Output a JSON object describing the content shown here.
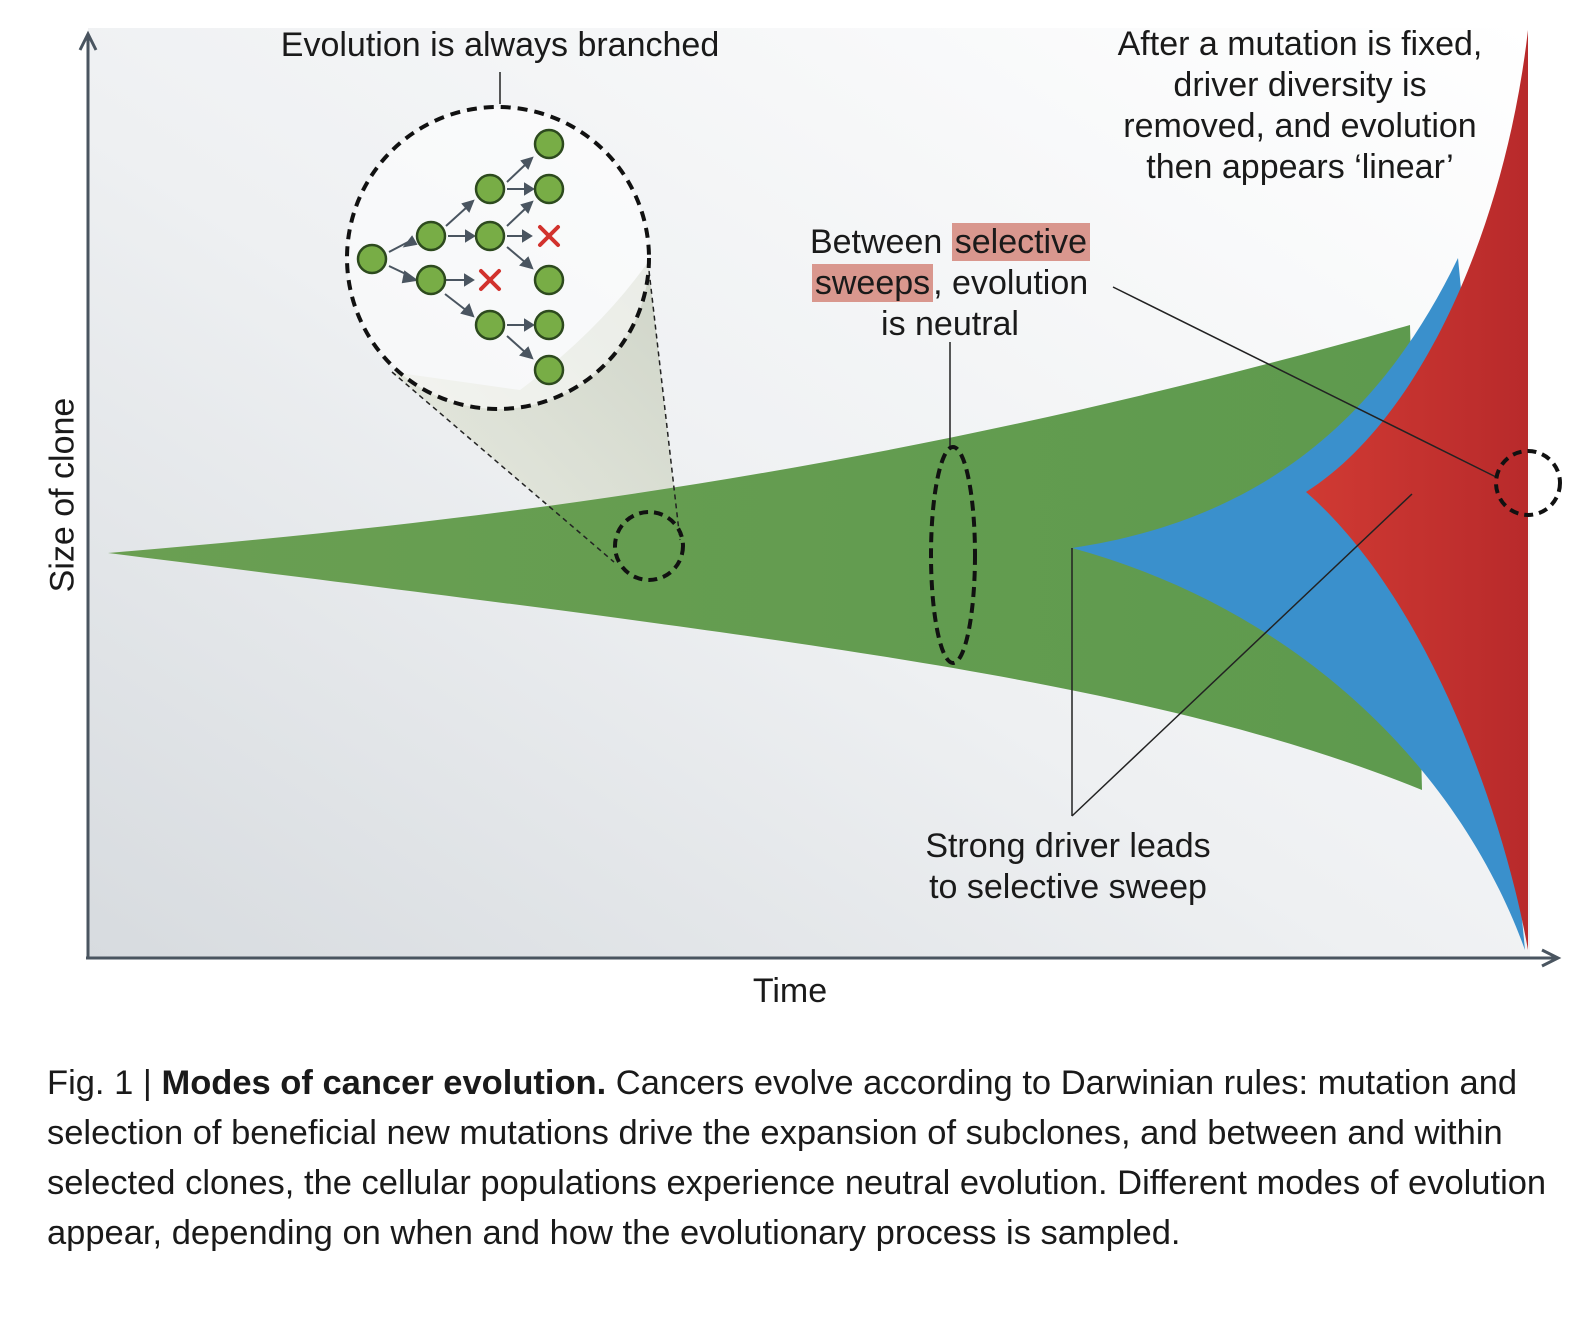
{
  "axes": {
    "y_label": "Size of clone",
    "x_label": "Time"
  },
  "annotations": {
    "branched": "Evolution is always branched",
    "fixed": [
      "After a mutation is fixed,",
      "driver diversity is",
      "removed, and evolution",
      "then appears ‘linear’"
    ],
    "neutral": {
      "line1_pre": "Between ",
      "line1_highlight": "selective",
      "line2_highlight": "sweeps",
      "line2_post": ", evolution",
      "line3": "is neutral"
    },
    "driver": [
      "Strong driver leads",
      "to selective sweep"
    ]
  },
  "clones": [
    {
      "name": "ancestral clone",
      "color": "#6a9f52"
    },
    {
      "name": "first subclone",
      "color": "#3a90cc"
    },
    {
      "name": "second subclone",
      "color": "#c8302e"
    }
  ],
  "inset_tree": {
    "node_color": "#78ad46",
    "arrow_color": "#4a5560",
    "extinct_mark": "×",
    "extinct_color": "#d2322d"
  },
  "caption": {
    "fig_label": "Fig. 1",
    "separator": "|",
    "title": "Modes of cancer evolution.",
    "text": "Cancers evolve according to Darwinian rules: mutation and selection of beneficial new mutations drive the expansion of subclones, and between and within selected clones, the cellular populations experience neutral evolution. Different modes of evolution appear, depending on when and how the evolutionary process is sampled."
  }
}
